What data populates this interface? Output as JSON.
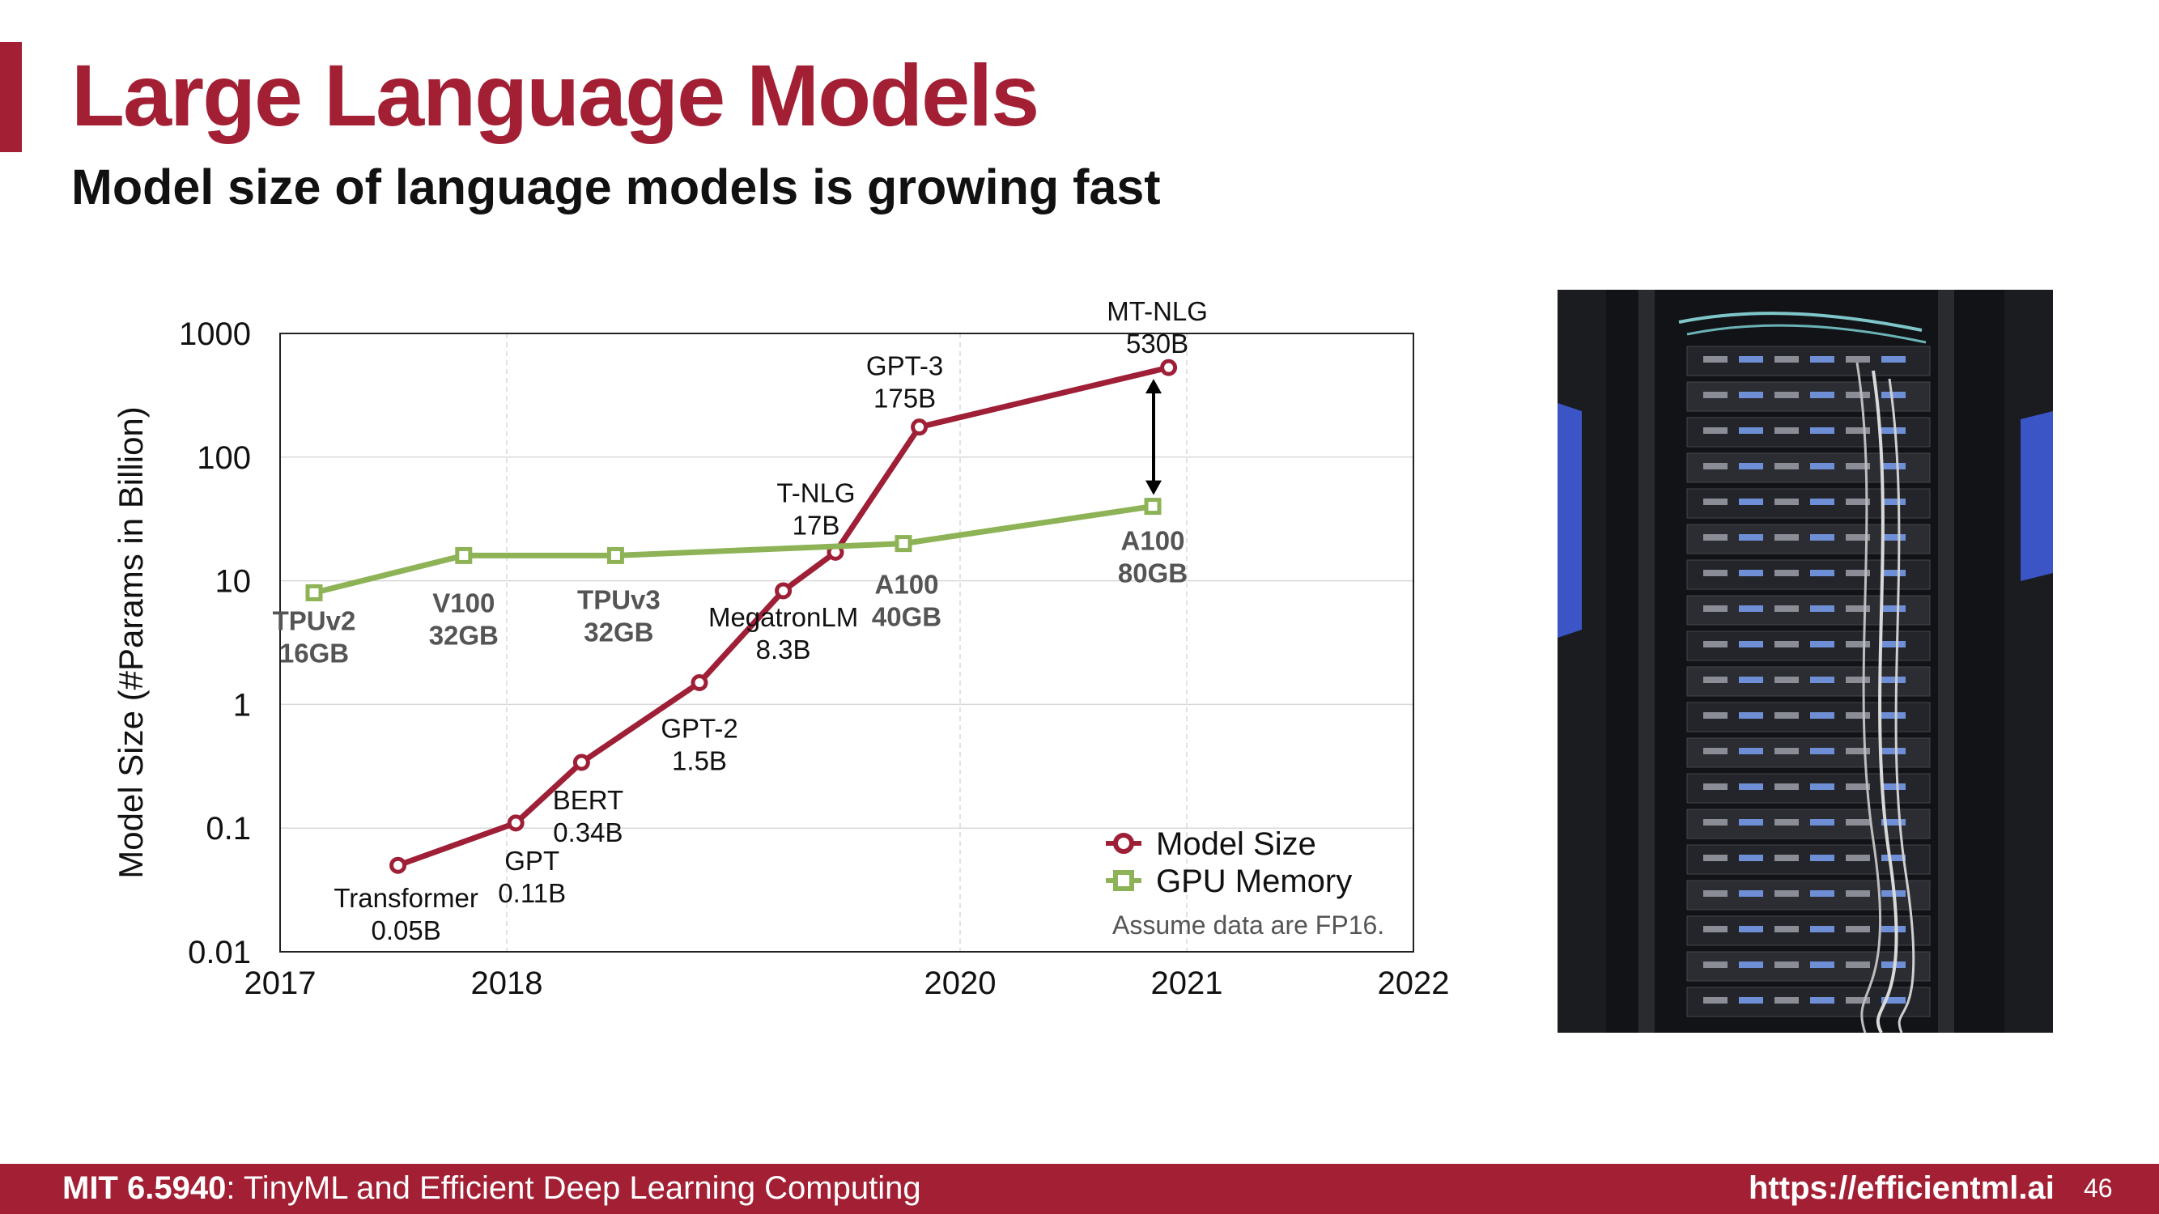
{
  "slide": {
    "title": "Large Language Models",
    "subtitle": "Model size of language models is growing fast",
    "accent_color": "#a31f34"
  },
  "footer": {
    "course_code": "MIT 6.5940",
    "course_rest": ": TinyML and Efficient Deep Learning Computing",
    "url": "https://efficientml.ai",
    "page_number": "46"
  },
  "photo": {
    "subject": "server-rack-photo"
  },
  "chart_data": {
    "type": "line",
    "ylabel": "Model Size (#Params in Billion)",
    "xlabel": "",
    "yscale": "log",
    "ylim": [
      0.01,
      1000
    ],
    "yticks": [
      0.01,
      0.1,
      1,
      10,
      100,
      1000
    ],
    "ytick_labels": [
      "0.01",
      "0.1",
      "1",
      "10",
      "100",
      "1000"
    ],
    "xlim": [
      2017,
      2022
    ],
    "xticks": [
      2017,
      2018,
      2020,
      2021,
      2022
    ],
    "xtick_labels": [
      "2017",
      "2018",
      "2020",
      "2021",
      "2022"
    ],
    "grid": true,
    "legend_position": "bottom-right",
    "note": "Assume data are FP16.",
    "series": [
      {
        "name": "Model Size",
        "color": "#9e1f36",
        "marker": "circle",
        "points": [
          {
            "x": 2017.52,
            "y": 0.05,
            "name": "Transformer",
            "value": "0.05B"
          },
          {
            "x": 2018.04,
            "y": 0.11,
            "name": "GPT",
            "value": "0.11B"
          },
          {
            "x": 2018.33,
            "y": 0.34,
            "name": "BERT",
            "value": "0.34B"
          },
          {
            "x": 2018.85,
            "y": 1.5,
            "name": "GPT-2",
            "value": "1.5B"
          },
          {
            "x": 2019.22,
            "y": 8.3,
            "name": "MegatronLM",
            "value": "8.3B"
          },
          {
            "x": 2019.45,
            "y": 17,
            "name": "T-NLG",
            "value": "17B"
          },
          {
            "x": 2019.82,
            "y": 175,
            "name": "GPT-3",
            "value": "175B"
          },
          {
            "x": 2020.92,
            "y": 530,
            "name": "MT-NLG",
            "value": "530B"
          }
        ]
      },
      {
        "name": "GPU Memory",
        "color": "#8db356",
        "marker": "square",
        "points": [
          {
            "x": 2017.15,
            "y": 8,
            "name": "TPUv2",
            "value": "16GB"
          },
          {
            "x": 2017.81,
            "y": 16,
            "name": "V100",
            "value": "32GB"
          },
          {
            "x": 2018.48,
            "y": 16,
            "name": "TPUv3",
            "value": "32GB"
          },
          {
            "x": 2019.75,
            "y": 20,
            "name": "A100",
            "value": "40GB"
          },
          {
            "x": 2020.85,
            "y": 40,
            "name": "A100",
            "value": "80GB"
          }
        ]
      }
    ]
  }
}
